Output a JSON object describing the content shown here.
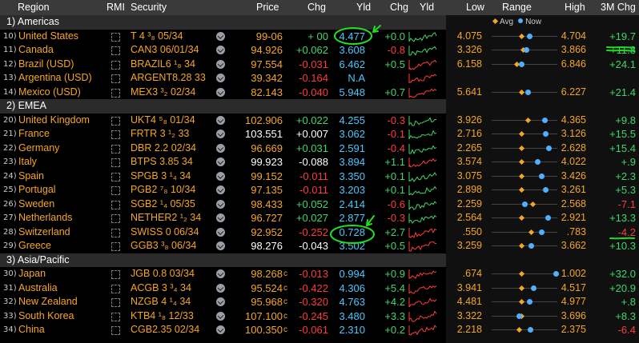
{
  "headers": {
    "region": "Region",
    "rmi": "RMI",
    "security": "Security",
    "price": "Price",
    "chg": "Chg",
    "yld": "Yld",
    "chg2": "Chg",
    "yld2": "Yld",
    "low": "Low",
    "range": "Range",
    "high": "High",
    "chg3m": "3M Chg",
    "legend_avg": "Avg",
    "legend_now": "Now"
  },
  "colors": {
    "orange": "#f5a623",
    "green": "#3ed76c",
    "red": "#ff3b3b",
    "cyan": "#49c8ff",
    "avg": "#f5a623",
    "now": "#4fb0ff",
    "annotation": "#22dd22"
  },
  "icons": {
    "rmi": "dashed-box-icon",
    "action": "check-circle-icon"
  },
  "rows": [
    {
      "type": "group",
      "label": "1) Americas"
    },
    {
      "type": "item",
      "n": "10)",
      "region": "United States",
      "sec": "T 4 ³₈ 05/34",
      "price": "99-06",
      "pc": "",
      "chg": "+ 00",
      "cc": "green",
      "yld": "4.477",
      "ychg": "+0.0",
      "yc": "green",
      "spark": "green",
      "low": "4.075",
      "high": "4.704",
      "m3": "+19.7",
      "m3c": "green",
      "range": [
        0.45,
        0.57
      ],
      "circle_yld": true
    },
    {
      "type": "item",
      "n": "11)",
      "region": "Canada",
      "sec": "CAN3 06/01/34",
      "price": "94.926",
      "pc": "",
      "chg": "+0.062",
      "cc": "green",
      "yld": "3.608",
      "ychg": "-0.8",
      "yc": "red",
      "spark": "green",
      "low": "3.326",
      "high": "3.866",
      "m3": "+11.8",
      "m3c": "green",
      "range": [
        0.47,
        0.52
      ]
    },
    {
      "type": "item",
      "n": "12)",
      "region": "Brazil (USD)",
      "sec": "BRAZIL6 ¹₈ 34",
      "price": "97.554",
      "pc": "",
      "chg": "-0.031",
      "cc": "red",
      "yld": "6.462",
      "ychg": "+0.5",
      "yc": "green",
      "spark": "red",
      "low": "6.158",
      "high": "6.846",
      "m3": "+24.1",
      "m3c": "green",
      "range": [
        0.38,
        0.45
      ]
    },
    {
      "type": "item",
      "n": "13)",
      "region": "Argentina (USD)",
      "sec": "ARGENT8.28 33",
      "price": "39.342",
      "pc": "",
      "chg": "-0.164",
      "cc": "red",
      "yld": "N.A",
      "ychg": "",
      "yc": "green",
      "spark": "red",
      "low": "",
      "high": "",
      "m3": "",
      "m3c": "green",
      "range": null
    },
    {
      "type": "item",
      "n": "14)",
      "region": "Mexico (USD)",
      "sec": "MEX3 ³₂ 02/34",
      "price": "82.143",
      "pc": "",
      "chg": "-0.040",
      "cc": "red",
      "yld": "5.948",
      "ychg": "+0.7",
      "yc": "green",
      "spark": "red",
      "low": "5.641",
      "high": "6.227",
      "m3": "+21.4",
      "m3c": "green",
      "range": [
        0.45,
        0.55
      ]
    },
    {
      "type": "group",
      "label": "2) EMEA"
    },
    {
      "type": "item",
      "n": "20)",
      "region": "United Kingdom",
      "sec": "UKT4 ⁵₈ 01/34",
      "price": "102.906",
      "pc": "",
      "chg": "+0.022",
      "cc": "green",
      "yld": "4.255",
      "ychg": "-0.3",
      "yc": "red",
      "spark": "green",
      "low": "3.926",
      "high": "4.365",
      "m3": "+9.8",
      "m3c": "green",
      "range": [
        0.55,
        0.8
      ]
    },
    {
      "type": "item",
      "n": "21)",
      "region": "France",
      "sec": "FRTR 3 ¹₂ 33",
      "price": "103.551",
      "pc": "white",
      "chg": "+0.007",
      "cc": "white",
      "yld": "3.062",
      "ychg": "-0.1",
      "yc": "red",
      "spark": "green",
      "low": "2.716",
      "high": "3.126",
      "m3": "+15.5",
      "m3c": "green",
      "range": [
        0.45,
        0.82
      ]
    },
    {
      "type": "item",
      "n": "22)",
      "region": "Germany",
      "sec": "DBR 2.2 02/34",
      "price": "96.669",
      "pc": "",
      "chg": "+0.031",
      "cc": "green",
      "yld": "2.591",
      "ychg": "-0.4",
      "yc": "red",
      "spark": "green",
      "low": "2.265",
      "high": "2.628",
      "m3": "+15.4",
      "m3c": "green",
      "range": [
        0.45,
        0.87
      ]
    },
    {
      "type": "item",
      "n": "23)",
      "region": "Italy",
      "sec": "BTPS 3.85 34",
      "price": "99.923",
      "pc": "white",
      "chg": "-0.088",
      "cc": "white",
      "yld": "3.894",
      "ychg": "+1.1",
      "yc": "green",
      "spark": "red",
      "low": "3.574",
      "high": "4.022",
      "m3": "+.9",
      "m3c": "green",
      "range": [
        0.45,
        0.7
      ]
    },
    {
      "type": "item",
      "n": "24)",
      "region": "Spain",
      "sec": "SPGB 3 ¹₄ 34",
      "price": "99.152",
      "pc": "",
      "chg": "-0.011",
      "cc": "red",
      "yld": "3.350",
      "ychg": "+0.1",
      "yc": "green",
      "spark": "green",
      "low": "3.075",
      "high": "3.426",
      "m3": "+2.3",
      "m3c": "green",
      "range": [
        0.45,
        0.75
      ]
    },
    {
      "type": "item",
      "n": "25)",
      "region": "Portugal",
      "sec": "PGB2 ⁷₈ 10/34",
      "price": "97.135",
      "pc": "",
      "chg": "-0.011",
      "cc": "red",
      "yld": "3.203",
      "ychg": "+0.1",
      "yc": "green",
      "spark": "green",
      "low": "2.898",
      "high": "3.261",
      "m3": "+5.3",
      "m3c": "green",
      "range": [
        0.45,
        0.82
      ]
    },
    {
      "type": "item",
      "n": "26)",
      "region": "Sweden",
      "sec": "SGB2 ¹₄ 05/35",
      "price": "98.433",
      "pc": "",
      "chg": "+0.052",
      "cc": "green",
      "yld": "2.414",
      "ychg": "-0.6",
      "yc": "red",
      "spark": "green",
      "low": "2.259",
      "high": "2.568",
      "m3": "-7.1",
      "m3c": "red",
      "range": [
        0.62,
        0.5
      ]
    },
    {
      "type": "item",
      "n": "27)",
      "region": "Netherlands",
      "sec": "NETHER2 ¹₂ 34",
      "price": "96.727",
      "pc": "",
      "chg": "+0.027",
      "cc": "green",
      "yld": "2.877",
      "ychg": "-0.3",
      "yc": "red",
      "spark": "green",
      "low": "2.564",
      "high": "2.921",
      "m3": "+13.3",
      "m3c": "green",
      "range": [
        0.45,
        0.85
      ]
    },
    {
      "type": "item",
      "n": "28)",
      "region": "Switzerland",
      "sec": "SWISS 0 06/34",
      "price": "92.952",
      "pc": "",
      "chg": "-0.252",
      "cc": "red",
      "yld": "0.728",
      "ychg": "+2.7",
      "yc": "green",
      "spark": "red",
      "low": ".550",
      "high": ".783",
      "m3": "-4.2",
      "m3c": "red",
      "range": [
        0.6,
        0.75
      ],
      "circle_yld": true
    },
    {
      "type": "item",
      "n": "29)",
      "region": "Greece",
      "sec": "GGB3 ³₈ 06/34",
      "price": "98.276",
      "pc": "white",
      "chg": "-0.043",
      "cc": "white",
      "yld": "3.502",
      "ychg": "+0.5",
      "yc": "green",
      "spark": "red",
      "low": "3.259",
      "high": "3.662",
      "m3": "+10.3",
      "m3c": "green",
      "range": [
        0.45,
        0.6
      ]
    },
    {
      "type": "group",
      "label": "3) Asia/Pacific"
    },
    {
      "type": "item",
      "n": "30)",
      "region": "Japan",
      "sec": "JGB 0.8 03/34",
      "price": "98.268",
      "pc": "",
      "chg": "-0.013",
      "cc": "red",
      "yld": "0.994",
      "ychg": "+0.9",
      "yc": "green",
      "spark": "red",
      "low": ".674",
      "high": "1.002",
      "m3": "+32.0",
      "m3c": "green",
      "range": [
        0.45,
        0.97
      ],
      "csuf": "c"
    },
    {
      "type": "item",
      "n": "31)",
      "region": "Australia",
      "sec": "ACGB 3 ³₄ 34",
      "price": "95.524",
      "pc": "",
      "chg": "-0.422",
      "cc": "red",
      "yld": "4.306",
      "ychg": "+5.4",
      "yc": "green",
      "spark": "red",
      "low": "3.941",
      "high": "4.517",
      "m3": "+20.9",
      "m3c": "green",
      "range": [
        0.45,
        0.63
      ],
      "csuf": "c"
    },
    {
      "type": "item",
      "n": "32)",
      "region": "New Zealand",
      "sec": "NZGB 4 ¹₄ 34",
      "price": "95.968",
      "pc": "",
      "chg": "-0.320",
      "cc": "red",
      "yld": "4.763",
      "ychg": "+4.2",
      "yc": "green",
      "spark": "red",
      "low": "4.481",
      "high": "4.977",
      "m3": "+.8",
      "m3c": "green",
      "range": [
        0.45,
        0.57
      ],
      "csuf": "c"
    },
    {
      "type": "item",
      "n": "33)",
      "region": "South Korea",
      "sec": "KTB4 ¹₈ 12/33",
      "price": "107.100",
      "pc": "",
      "chg": "-0.245",
      "cc": "red",
      "yld": "3.480",
      "ychg": "+3.3",
      "yc": "green",
      "spark": "red",
      "low": "3.322",
      "high": "3.696",
      "m3": "+8.3",
      "m3c": "green",
      "range": [
        0.45,
        0.42
      ],
      "csuf": "c"
    },
    {
      "type": "item",
      "n": "34)",
      "region": "China",
      "sec": "CGB2.35 02/34",
      "price": "100.350",
      "pc": "",
      "chg": "-0.061",
      "cc": "red",
      "yld": "2.310",
      "ychg": "+0.2",
      "yc": "green",
      "spark": "red",
      "low": "2.218",
      "high": "2.375",
      "m3": "-6.4",
      "m3c": "red",
      "range": [
        0.42,
        0.58
      ],
      "csuf": "c"
    }
  ]
}
